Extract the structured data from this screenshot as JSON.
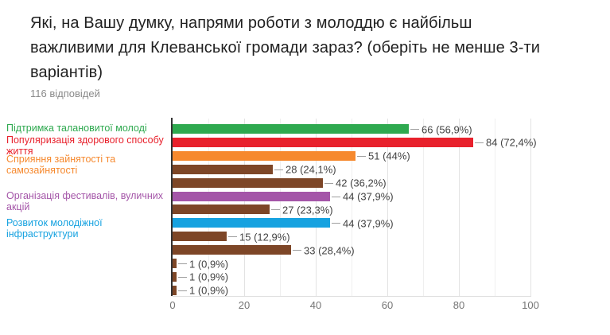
{
  "header": {
    "title": "Які, на Вашу думку, напрями роботи з молоддю є найбільш важливими для Клеванської громади зараз? (оберіть не менше 3-ти варіантів)",
    "responses_label": "116 відповідей"
  },
  "chart_data": {
    "type": "bar",
    "orientation": "horizontal",
    "total_responses": 116,
    "xlim": [
      0,
      100
    ],
    "x_ticks": [
      0,
      20,
      40,
      60,
      80,
      100
    ],
    "grid": "on",
    "bars": [
      {
        "label": "Підтримка талановитої молоді",
        "value": 66,
        "percent": "56,9%",
        "display": "66 (56,9%)",
        "color": "#2ea94f"
      },
      {
        "label": "Популяризація здорового способу життя",
        "value": 84,
        "percent": "72,4%",
        "display": "84 (72,4%)",
        "color": "#e8212c"
      },
      {
        "label": "Сприяння зайнятості та самозайнятості",
        "value": 51,
        "percent": "44%",
        "display": "51 (44%)",
        "color": "#f6892e"
      },
      {
        "label": "",
        "value": 28,
        "percent": "24,1%",
        "display": "28 (24,1%)",
        "color": "#7d4627"
      },
      {
        "label": "",
        "value": 42,
        "percent": "36,2%",
        "display": "42 (36,2%)",
        "color": "#7d4627"
      },
      {
        "label": "Організація фестивалів, вуличних акцій",
        "value": 44,
        "percent": "37,9%",
        "display": "44 (37,9%)",
        "color": "#a455a8"
      },
      {
        "label": "",
        "value": 27,
        "percent": "23,3%",
        "display": "27 (23,3%)",
        "color": "#7d4627"
      },
      {
        "label": "Розвиток молодіжної інфраструктури",
        "value": 44,
        "percent": "37,9%",
        "display": "44 (37,9%)",
        "color": "#16a2e0"
      },
      {
        "label": "",
        "value": 15,
        "percent": "12,9%",
        "display": "15 (12,9%)",
        "color": "#7d4627"
      },
      {
        "label": "",
        "value": 33,
        "percent": "28,4%",
        "display": "33 (28,4%)",
        "color": "#7d4627"
      },
      {
        "label": "",
        "value": 1,
        "percent": "0,9%",
        "display": "1 (0,9%)",
        "color": "#7d4627"
      },
      {
        "label": "",
        "value": 1,
        "percent": "0,9%",
        "display": "1 (0,9%)",
        "color": "#7d4627"
      },
      {
        "label": "",
        "value": 1,
        "percent": "0,9%",
        "display": "1 (0,9%)",
        "color": "#7d4627"
      }
    ],
    "colors": {
      "axis_line": "#333333",
      "grid_major": "#e3e3e3",
      "grid_minor": "#efefef",
      "value_label_text": "#424242",
      "tick_label_text": "#757575"
    }
  }
}
